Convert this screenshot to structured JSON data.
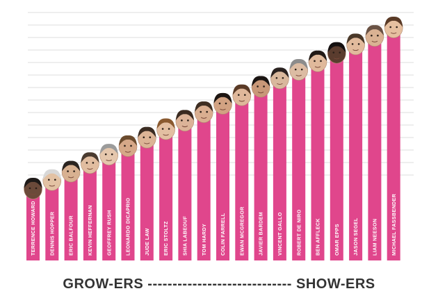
{
  "chart_data": {
    "type": "bar",
    "title": "",
    "xlabel": "",
    "ylabel": "",
    "bar_color": "#e0468c",
    "grid": true,
    "categories": [
      "TERRENCE HOWARD",
      "DENNIS HOPPER",
      "ERIC BALFOUR",
      "KEVIN HEFFERNAN",
      "GEOFFREY RUSH",
      "LEONARDO DICAPRIO",
      "JUDE LAW",
      "ERIC STOLTZ",
      "SHIA LABEOUF",
      "TOM HARDY",
      "COLIN FARRELL",
      "EWAN MCGREGOR",
      "JAVIER BARDEM",
      "VINCENT GALLO",
      "ROBERT DE NIRO",
      "BEN AFFLECK",
      "OMAR EPPS",
      "JASON SEGEL",
      "LIAM NEESON",
      "MICHAEL FASSBENDER"
    ],
    "values": [
      1,
      2,
      3,
      4,
      5,
      6,
      7,
      8,
      9,
      10,
      11,
      12,
      13,
      14,
      15,
      16,
      17,
      18,
      19,
      20
    ],
    "ylim": [
      0,
      20
    ]
  },
  "footer": {
    "left_label": "GROW-ERS",
    "dashes": "-----------------------------",
    "right_label": "SHOW-ERS"
  }
}
